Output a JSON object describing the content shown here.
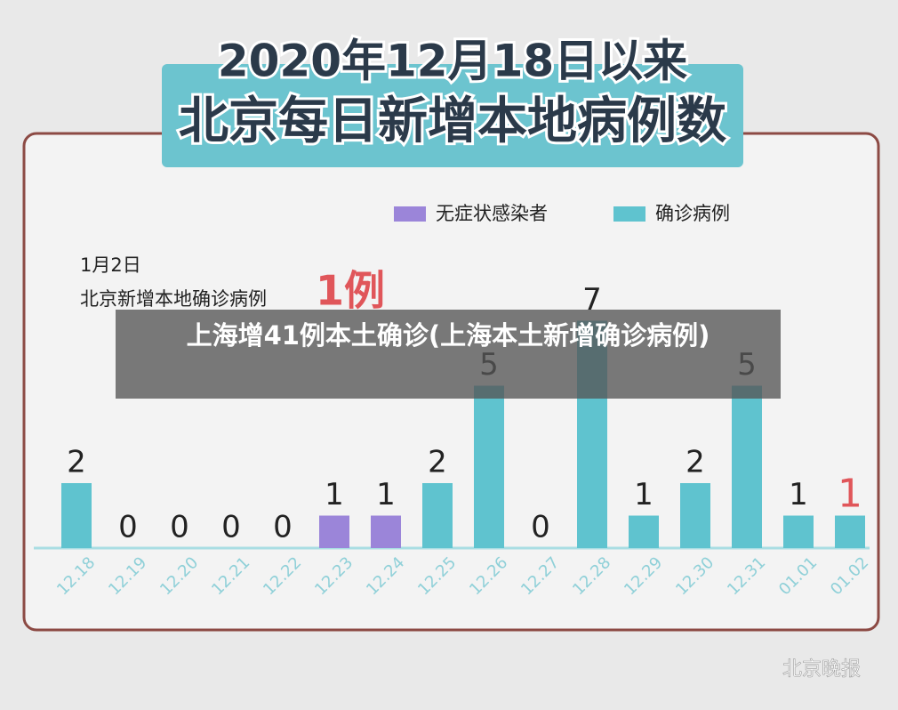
{
  "chart_data": {
    "type": "bar",
    "title": "2020年12月18日以来",
    "subtitle": "北京每日新增本地病例数",
    "categories": [
      "12.18",
      "12.19",
      "12.20",
      "12.21",
      "12.22",
      "12.23",
      "12.24",
      "12.25",
      "12.26",
      "12.27",
      "12.28",
      "12.29",
      "12.30",
      "12.31",
      "01.01",
      "01.02"
    ],
    "series": [
      {
        "name": "无症状感染者",
        "color": "#9b85d9",
        "values": [
          null,
          null,
          null,
          null,
          null,
          1,
          1,
          null,
          null,
          null,
          null,
          null,
          null,
          null,
          null,
          null
        ]
      },
      {
        "name": "确诊病例",
        "color": "#5fc3cf",
        "values": [
          2,
          0,
          0,
          0,
          0,
          null,
          null,
          2,
          5,
          0,
          7,
          1,
          2,
          5,
          1,
          1
        ]
      }
    ],
    "annotation": {
      "date": "1月2日",
      "text": "北京新增本地确诊病例",
      "count": "1例"
    },
    "caption": "上海增41例本土确诊(上海本土新增确诊病例)",
    "watermark": "北京晚报"
  }
}
